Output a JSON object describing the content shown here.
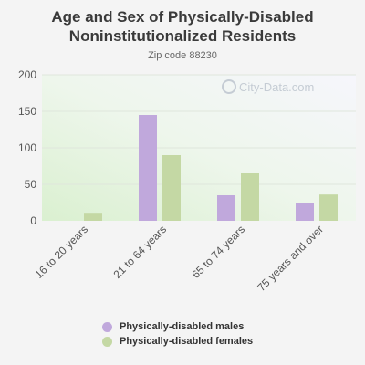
{
  "title_line1": "Age and Sex of Physically-Disabled",
  "title_line2": "Noninstitutionalized Residents",
  "subtitle": "Zip code 88230",
  "watermark": "City-Data.com",
  "colors": {
    "males": "#c0a8dc",
    "females": "#c4d8a4",
    "grid": "#dfe6dc",
    "axis_text": "#555555"
  },
  "chart_data": {
    "type": "bar",
    "categories": [
      "16 to 20 years",
      "21 to 64 years",
      "65 to 74 years",
      "75 years and over"
    ],
    "series": [
      {
        "name": "Physically-disabled males",
        "values": [
          0,
          145,
          35,
          24
        ]
      },
      {
        "name": "Physically-disabled females",
        "values": [
          11,
          90,
          65,
          36
        ]
      }
    ],
    "yticks": [
      0,
      50,
      100,
      150,
      200
    ],
    "ylim": [
      0,
      200
    ],
    "grid": true,
    "legend_position": "bottom"
  }
}
